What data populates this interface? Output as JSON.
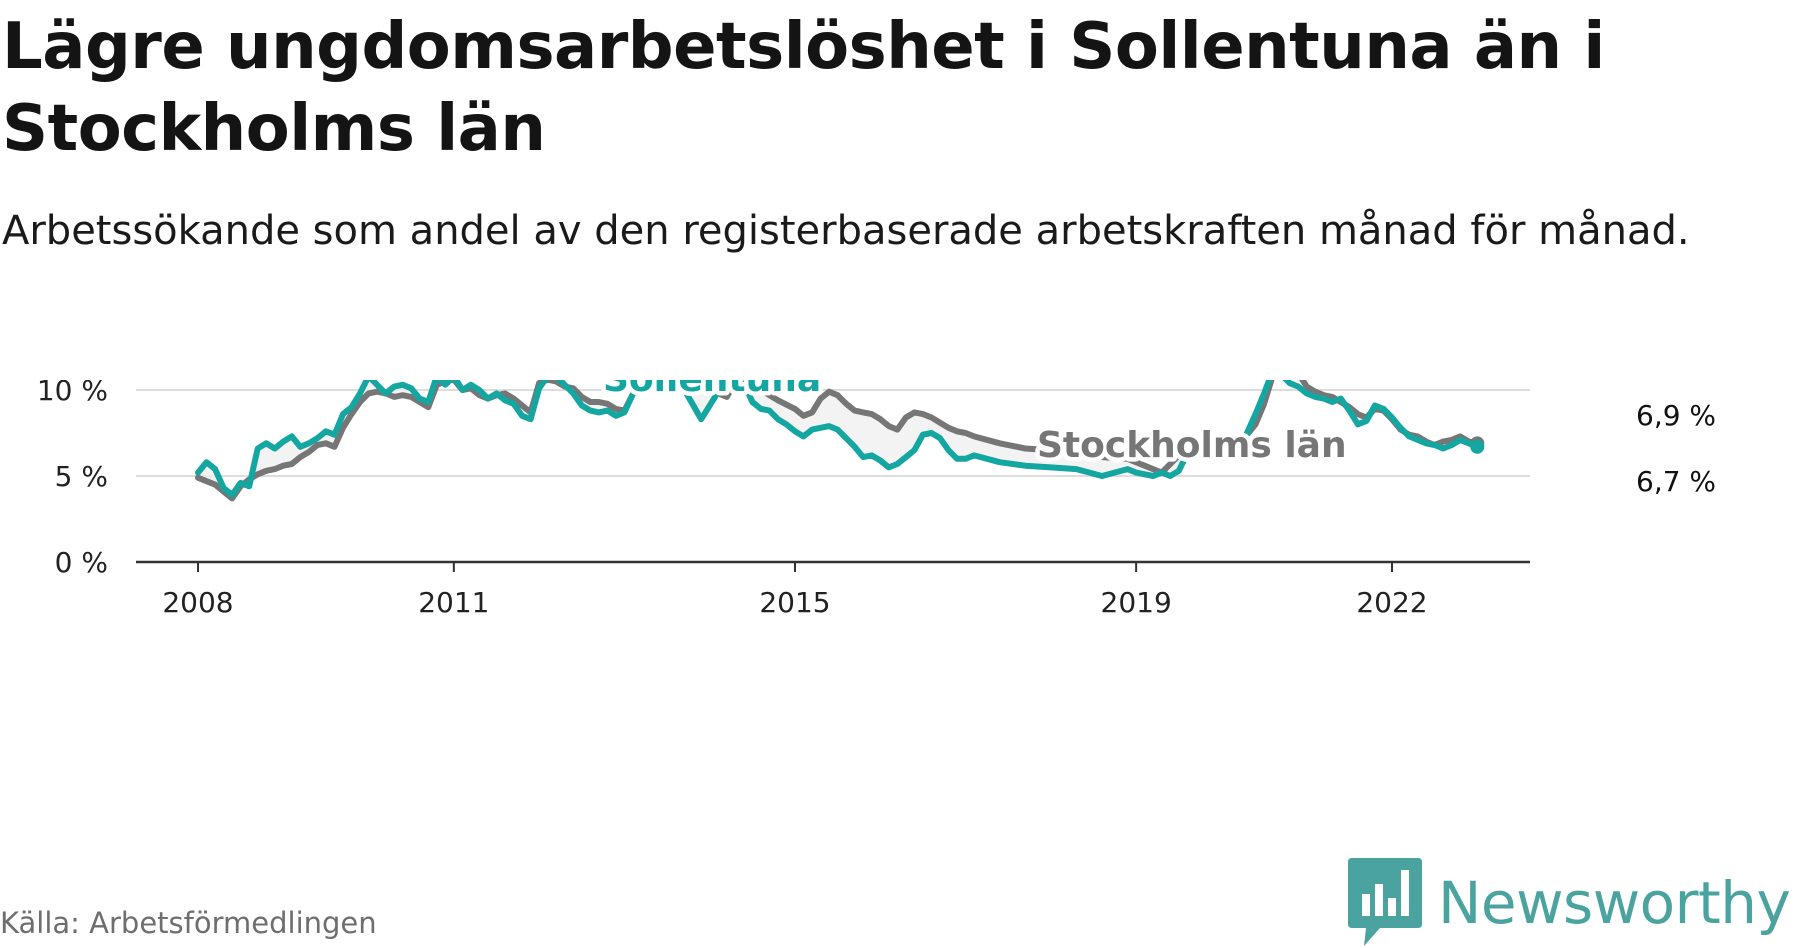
{
  "title": "Lägre ungdomsarbetslöshet i Sollentuna än i Stockholms län",
  "subtitle": "Arbetssökande som andel av den registerbaserade arbetskraften månad för månad.",
  "source": "Källa: Arbetsförmedlingen",
  "logo": {
    "text": "Newsworthy",
    "icon": "newsworthy-logo-icon"
  },
  "colors": {
    "sollentuna": "#14a6a1",
    "stockholm": "#767676",
    "grid": "#dddddd",
    "axis": "#333333",
    "brand": "#4ba3a0"
  },
  "chart_data": {
    "type": "line",
    "x_unit": "year",
    "ylim": [
      0,
      12
    ],
    "xlim": [
      2007.5,
      2023.0
    ],
    "yticks": [
      0,
      5,
      10
    ],
    "ytick_labels": [
      "0 %",
      "5 %",
      "10 %"
    ],
    "xticks": [
      2008,
      2011,
      2015,
      2019,
      2022
    ],
    "xtick_labels": [
      "2008",
      "2011",
      "2015",
      "2019",
      "2022"
    ],
    "grid": true,
    "series": [
      {
        "name": "Stockholms län",
        "label": "Stockholms län",
        "end_label": "6,9 %",
        "points": [
          [
            2008.0,
            4.9
          ],
          [
            2008.1,
            4.7
          ],
          [
            2008.2,
            4.5
          ],
          [
            2008.3,
            4.1
          ],
          [
            2008.4,
            3.7
          ],
          [
            2008.5,
            4.4
          ],
          [
            2008.6,
            4.8
          ],
          [
            2008.7,
            5.1
          ],
          [
            2008.8,
            5.3
          ],
          [
            2008.9,
            5.4
          ],
          [
            2009.0,
            5.6
          ],
          [
            2009.1,
            5.7
          ],
          [
            2009.2,
            6.1
          ],
          [
            2009.3,
            6.4
          ],
          [
            2009.4,
            6.8
          ],
          [
            2009.5,
            6.9
          ],
          [
            2009.6,
            6.7
          ],
          [
            2009.7,
            7.8
          ],
          [
            2009.8,
            8.6
          ],
          [
            2009.9,
            9.3
          ],
          [
            2010.0,
            9.8
          ],
          [
            2010.1,
            9.9
          ],
          [
            2010.2,
            9.8
          ],
          [
            2010.3,
            9.6
          ],
          [
            2010.4,
            9.7
          ],
          [
            2010.5,
            9.6
          ],
          [
            2010.6,
            9.3
          ],
          [
            2010.7,
            9.0
          ],
          [
            2010.8,
            10.3
          ],
          [
            2010.9,
            10.5
          ],
          [
            2011.0,
            10.6
          ],
          [
            2011.1,
            10.0
          ],
          [
            2011.2,
            10.1
          ],
          [
            2011.3,
            9.7
          ],
          [
            2011.4,
            9.5
          ],
          [
            2011.5,
            9.7
          ],
          [
            2011.6,
            9.8
          ],
          [
            2011.7,
            9.5
          ],
          [
            2011.8,
            9.1
          ],
          [
            2011.9,
            8.7
          ],
          [
            2012.0,
            10.4
          ],
          [
            2012.1,
            10.6
          ],
          [
            2012.2,
            10.5
          ],
          [
            2012.3,
            10.2
          ],
          [
            2012.4,
            10.1
          ],
          [
            2012.5,
            9.6
          ],
          [
            2012.6,
            9.3
          ],
          [
            2012.7,
            9.3
          ],
          [
            2012.8,
            9.2
          ],
          [
            2012.9,
            8.9
          ],
          [
            2013.0,
            8.8
          ],
          [
            2013.3,
            11.7
          ],
          [
            2013.6,
            11.0
          ],
          [
            2013.9,
            10.2
          ],
          [
            2014.2,
            9.6
          ],
          [
            2014.4,
            11.3
          ],
          [
            2014.6,
            10.0
          ],
          [
            2014.8,
            9.4
          ],
          [
            2015.0,
            8.9
          ],
          [
            2015.1,
            8.5
          ],
          [
            2015.2,
            8.7
          ],
          [
            2015.3,
            9.5
          ],
          [
            2015.4,
            9.9
          ],
          [
            2015.5,
            9.7
          ],
          [
            2015.6,
            9.2
          ],
          [
            2015.7,
            8.8
          ],
          [
            2015.8,
            8.7
          ],
          [
            2015.9,
            8.6
          ],
          [
            2016.0,
            8.3
          ],
          [
            2016.1,
            7.9
          ],
          [
            2016.2,
            7.7
          ],
          [
            2016.3,
            8.4
          ],
          [
            2016.4,
            8.7
          ],
          [
            2016.5,
            8.6
          ],
          [
            2016.6,
            8.4
          ],
          [
            2016.7,
            8.1
          ],
          [
            2016.8,
            7.8
          ],
          [
            2016.9,
            7.6
          ],
          [
            2017.0,
            7.5
          ],
          [
            2017.1,
            7.3
          ],
          [
            2017.4,
            6.9
          ],
          [
            2017.7,
            6.6
          ],
          [
            2018.0,
            6.5
          ],
          [
            2018.3,
            6.4
          ],
          [
            2018.6,
            6.1
          ],
          [
            2018.9,
            6.0
          ],
          [
            2019.1,
            5.6
          ],
          [
            2019.3,
            5.2
          ],
          [
            2019.5,
            6.2
          ],
          [
            2019.6,
            6.3
          ],
          [
            2019.7,
            6.6
          ],
          [
            2019.8,
            6.8
          ],
          [
            2019.9,
            6.9
          ],
          [
            2020.0,
            6.8
          ],
          [
            2020.1,
            6.7
          ],
          [
            2020.2,
            6.8
          ],
          [
            2020.3,
            7.4
          ],
          [
            2020.4,
            8.0
          ],
          [
            2020.5,
            9.2
          ],
          [
            2020.6,
            10.8
          ],
          [
            2020.7,
            11.5
          ],
          [
            2020.8,
            11.3
          ],
          [
            2020.9,
            11.0
          ],
          [
            2021.0,
            10.2
          ],
          [
            2021.1,
            9.9
          ],
          [
            2021.2,
            9.7
          ],
          [
            2021.3,
            9.6
          ],
          [
            2021.4,
            9.3
          ],
          [
            2021.5,
            9.0
          ],
          [
            2021.6,
            8.6
          ],
          [
            2021.7,
            8.4
          ],
          [
            2021.8,
            8.9
          ],
          [
            2021.9,
            8.8
          ],
          [
            2022.0,
            8.3
          ],
          [
            2022.1,
            7.7
          ],
          [
            2022.2,
            7.4
          ],
          [
            2022.3,
            7.3
          ],
          [
            2022.4,
            7.0
          ],
          [
            2022.5,
            6.8
          ],
          [
            2022.6,
            7.0
          ],
          [
            2022.7,
            7.1
          ],
          [
            2022.8,
            7.3
          ],
          [
            2022.9,
            7.0
          ],
          [
            2023.0,
            6.9
          ]
        ]
      },
      {
        "name": "Sollentuna",
        "label": "Sollentuna",
        "end_label": "6,7 %",
        "points": [
          [
            2008.0,
            5.2
          ],
          [
            2008.1,
            5.8
          ],
          [
            2008.2,
            5.4
          ],
          [
            2008.3,
            4.3
          ],
          [
            2008.4,
            3.9
          ],
          [
            2008.5,
            4.6
          ],
          [
            2008.6,
            4.4
          ],
          [
            2008.7,
            6.6
          ],
          [
            2008.8,
            6.9
          ],
          [
            2008.9,
            6.6
          ],
          [
            2009.0,
            7.0
          ],
          [
            2009.1,
            7.3
          ],
          [
            2009.2,
            6.7
          ],
          [
            2009.3,
            6.9
          ],
          [
            2009.4,
            7.2
          ],
          [
            2009.5,
            7.6
          ],
          [
            2009.6,
            7.4
          ],
          [
            2009.7,
            8.6
          ],
          [
            2009.8,
            9.0
          ],
          [
            2009.9,
            9.8
          ],
          [
            2010.0,
            10.8
          ],
          [
            2010.1,
            10.3
          ],
          [
            2010.2,
            9.8
          ],
          [
            2010.3,
            10.2
          ],
          [
            2010.4,
            10.3
          ],
          [
            2010.5,
            10.1
          ],
          [
            2010.6,
            9.5
          ],
          [
            2010.7,
            9.3
          ],
          [
            2010.8,
            10.8
          ],
          [
            2010.9,
            10.3
          ],
          [
            2011.0,
            10.8
          ],
          [
            2011.1,
            10.0
          ],
          [
            2011.2,
            10.3
          ],
          [
            2011.3,
            10.0
          ],
          [
            2011.4,
            9.5
          ],
          [
            2011.5,
            9.8
          ],
          [
            2011.6,
            9.4
          ],
          [
            2011.7,
            9.2
          ],
          [
            2011.8,
            8.5
          ],
          [
            2011.9,
            8.3
          ],
          [
            2012.0,
            10.1
          ],
          [
            2012.1,
            10.8
          ],
          [
            2012.2,
            10.8
          ],
          [
            2012.3,
            10.3
          ],
          [
            2012.4,
            9.8
          ],
          [
            2012.5,
            9.1
          ],
          [
            2012.6,
            8.8
          ],
          [
            2012.7,
            8.7
          ],
          [
            2012.8,
            8.8
          ],
          [
            2012.9,
            8.5
          ],
          [
            2013.0,
            8.7
          ],
          [
            2013.3,
            11.9
          ],
          [
            2013.6,
            10.9
          ],
          [
            2013.9,
            8.3
          ],
          [
            2014.2,
            10.7
          ],
          [
            2014.4,
            10.4
          ],
          [
            2014.5,
            9.3
          ],
          [
            2014.6,
            8.9
          ],
          [
            2014.7,
            8.8
          ],
          [
            2014.8,
            8.3
          ],
          [
            2014.9,
            8.0
          ],
          [
            2015.0,
            7.6
          ],
          [
            2015.1,
            7.3
          ],
          [
            2015.2,
            7.7
          ],
          [
            2015.3,
            7.8
          ],
          [
            2015.4,
            7.9
          ],
          [
            2015.5,
            7.7
          ],
          [
            2015.6,
            7.2
          ],
          [
            2015.7,
            6.7
          ],
          [
            2015.8,
            6.1
          ],
          [
            2015.9,
            6.2
          ],
          [
            2016.0,
            5.9
          ],
          [
            2016.1,
            5.5
          ],
          [
            2016.2,
            5.7
          ],
          [
            2016.3,
            6.1
          ],
          [
            2016.4,
            6.5
          ],
          [
            2016.5,
            7.4
          ],
          [
            2016.6,
            7.5
          ],
          [
            2016.7,
            7.2
          ],
          [
            2016.8,
            6.5
          ],
          [
            2016.9,
            6.0
          ],
          [
            2017.0,
            6.0
          ],
          [
            2017.1,
            6.2
          ],
          [
            2017.4,
            5.8
          ],
          [
            2017.7,
            5.6
          ],
          [
            2018.0,
            5.5
          ],
          [
            2018.3,
            5.4
          ],
          [
            2018.6,
            5.0
          ],
          [
            2018.9,
            5.4
          ],
          [
            2019.0,
            5.2
          ],
          [
            2019.1,
            5.1
          ],
          [
            2019.2,
            5.0
          ],
          [
            2019.3,
            5.2
          ],
          [
            2019.4,
            5.0
          ],
          [
            2019.5,
            5.3
          ],
          [
            2019.6,
            6.3
          ],
          [
            2019.7,
            6.6
          ],
          [
            2019.8,
            6.7
          ],
          [
            2019.9,
            6.7
          ],
          [
            2020.0,
            6.4
          ],
          [
            2020.1,
            6.6
          ],
          [
            2020.2,
            6.1
          ],
          [
            2020.3,
            7.5
          ],
          [
            2020.4,
            8.6
          ],
          [
            2020.5,
            9.8
          ],
          [
            2020.6,
            11.1
          ],
          [
            2020.7,
            10.9
          ],
          [
            2020.8,
            10.4
          ],
          [
            2020.9,
            10.2
          ],
          [
            2021.0,
            9.8
          ],
          [
            2021.1,
            9.6
          ],
          [
            2021.2,
            9.5
          ],
          [
            2021.3,
            9.3
          ],
          [
            2021.4,
            9.5
          ],
          [
            2021.5,
            8.8
          ],
          [
            2021.6,
            8.0
          ],
          [
            2021.7,
            8.2
          ],
          [
            2021.8,
            9.1
          ],
          [
            2021.9,
            8.9
          ],
          [
            2022.0,
            8.4
          ],
          [
            2022.1,
            7.8
          ],
          [
            2022.2,
            7.3
          ],
          [
            2022.3,
            7.1
          ],
          [
            2022.4,
            6.9
          ],
          [
            2022.5,
            6.8
          ],
          [
            2022.6,
            6.6
          ],
          [
            2022.7,
            6.8
          ],
          [
            2022.8,
            7.1
          ],
          [
            2022.9,
            6.9
          ],
          [
            2023.0,
            6.7
          ]
        ]
      }
    ]
  }
}
